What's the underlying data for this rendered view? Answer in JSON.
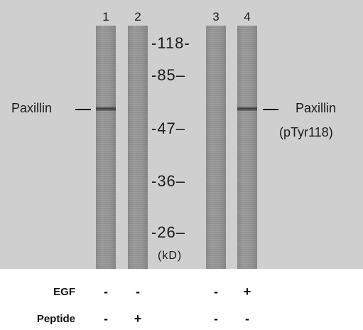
{
  "lanes": [
    {
      "number": "1",
      "band": true
    },
    {
      "number": "2",
      "band": false
    },
    {
      "number": "3",
      "band": false
    },
    {
      "number": "4",
      "band": true
    }
  ],
  "markers": [
    "-118-",
    "-85–",
    "-47–",
    "-36–",
    "-26–"
  ],
  "marker_unit": "(kD)",
  "left_label": "Paxillin",
  "right_label": {
    "line1": "Paxillin",
    "line2": "(pTyr118)"
  },
  "conditions": [
    {
      "label": "EGF",
      "values": [
        "-",
        "-",
        "-",
        "+"
      ]
    },
    {
      "label": "Peptide",
      "values": [
        "-",
        "+",
        "-",
        "-"
      ]
    }
  ]
}
